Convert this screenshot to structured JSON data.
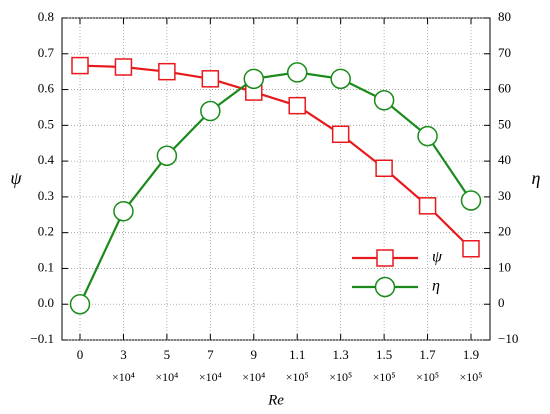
{
  "chart_data": {
    "type": "line",
    "x_label": "Re",
    "y_label": "ψ",
    "y2_label": "η",
    "categories": [
      "0",
      "3",
      "5",
      "7",
      "9",
      "1.1",
      "1.3",
      "1.5",
      "1.7",
      "1.9"
    ],
    "category_multipliers": [
      null,
      "×10⁴",
      "×10⁴",
      "×10⁴",
      "×10⁴",
      "×10⁵",
      "×10⁵",
      "×10⁵",
      "×10⁵",
      "×10⁵"
    ],
    "series": [
      {
        "name": "ψ",
        "color": "#e8191c",
        "marker": "square",
        "values": [
          0.667,
          0.663,
          0.65,
          0.63,
          0.593,
          0.555,
          0.475,
          0.38,
          0.275,
          0.155
        ]
      },
      {
        "name": "η",
        "color": "#1a8a1a",
        "marker": "circle",
        "axis": "y2",
        "values": [
          0,
          26,
          41.5,
          54,
          63,
          64.8,
          63,
          57,
          47,
          29
        ]
      }
    ],
    "ylim": [
      -0.1,
      0.8
    ],
    "yticks": [
      {
        "value": -0.1,
        "label": "−0.1"
      },
      {
        "value": 0,
        "label": "0.0"
      },
      0.1,
      0.2,
      0.3,
      0.4,
      0.5,
      0.6,
      0.7,
      0.8
    ],
    "y2lim": [
      -10,
      80
    ],
    "y2ticks": [
      {
        "value": -10,
        "label": "−10"
      },
      0,
      10,
      20,
      30,
      40,
      50,
      60,
      70,
      80
    ],
    "grid": true,
    "legend": "lower-right"
  }
}
